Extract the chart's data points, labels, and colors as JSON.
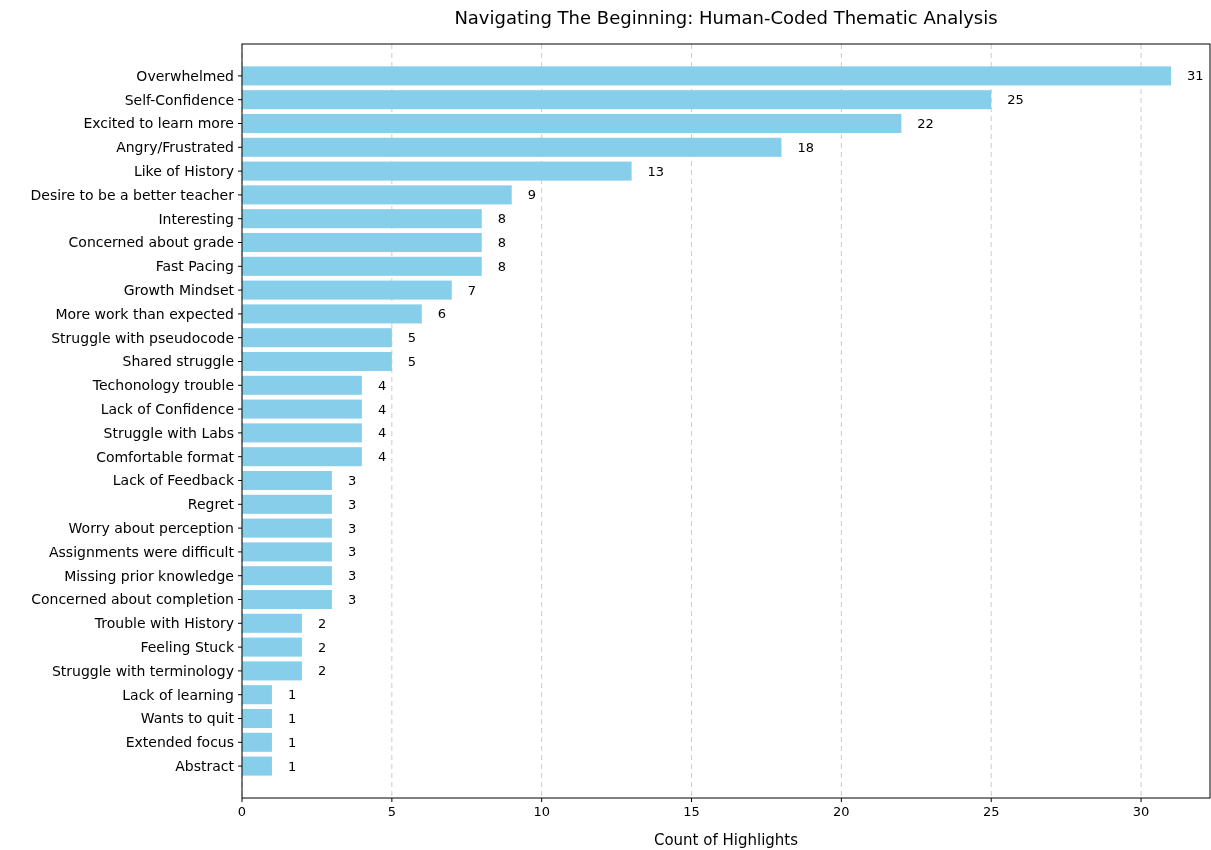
{
  "chart_data": {
    "type": "bar",
    "orientation": "horizontal",
    "title": "Navigating The Beginning: Human-Coded Thematic Analysis",
    "xlabel": "Count of Highlights",
    "categories": [
      "Overwhelmed",
      "Self-Confidence",
      "Excited to learn more",
      "Angry/Frustrated",
      "Like of History",
      "Desire to be a better teacher",
      "Interesting",
      "Concerned about grade",
      "Fast Pacing",
      "Growth Mindset",
      "More work than expected",
      "Struggle with pseudocode",
      "Shared struggle",
      "Techonology trouble",
      "Lack of Confidence",
      "Struggle with Labs",
      "Comfortable format",
      "Lack of Feedback",
      "Regret",
      "Worry about perception",
      "Assignments were difficult",
      "Missing prior knowledge",
      "Concerned about completion",
      "Trouble with History",
      "Feeling Stuck",
      "Struggle with terminology",
      "Lack of learning",
      "Wants to quit",
      "Extended focus",
      "Abstract"
    ],
    "values": [
      31,
      25,
      22,
      18,
      13,
      9,
      8,
      8,
      8,
      7,
      6,
      5,
      5,
      4,
      4,
      4,
      4,
      3,
      3,
      3,
      3,
      3,
      3,
      2,
      2,
      2,
      1,
      1,
      1,
      1
    ],
    "color": "#87ceeb",
    "xlim": [
      0,
      32.3
    ],
    "xticks": [
      0,
      5,
      10,
      15,
      20,
      25,
      30
    ],
    "grid": "x",
    "data_labels": true
  }
}
